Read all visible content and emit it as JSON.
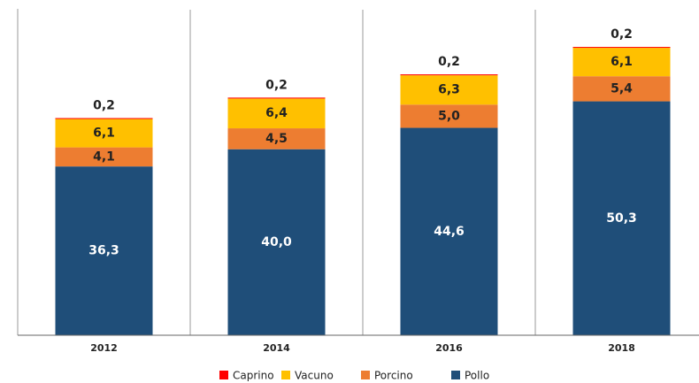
{
  "chart_data": {
    "type": "stacked_bar",
    "categories": [
      "2012",
      "2014",
      "2016",
      "2018"
    ],
    "series": [
      {
        "name": "Pollo",
        "color": "#1f4e79",
        "values": [
          36.3,
          40.0,
          44.6,
          50.3
        ],
        "value_labels": [
          "36,3",
          "40,0",
          "44,6",
          "50,3"
        ]
      },
      {
        "name": "Porcino",
        "color": "#ed7d31",
        "values": [
          4.1,
          4.5,
          5.0,
          5.4
        ],
        "value_labels": [
          "4,1",
          "4,5",
          "5,0",
          "5,4"
        ]
      },
      {
        "name": "Vacuno",
        "color": "#ffc000",
        "values": [
          6.1,
          6.4,
          6.3,
          6.1
        ],
        "value_labels": [
          "6,1",
          "6,4",
          "6,3",
          "6,1"
        ]
      },
      {
        "name": "Caprino",
        "color": "#ff0000",
        "values": [
          0.2,
          0.2,
          0.2,
          0.2
        ],
        "value_labels": [
          "0,2",
          "0,2",
          "0,2",
          "0,2"
        ]
      }
    ],
    "ylim": [
      0,
      70
    ]
  }
}
